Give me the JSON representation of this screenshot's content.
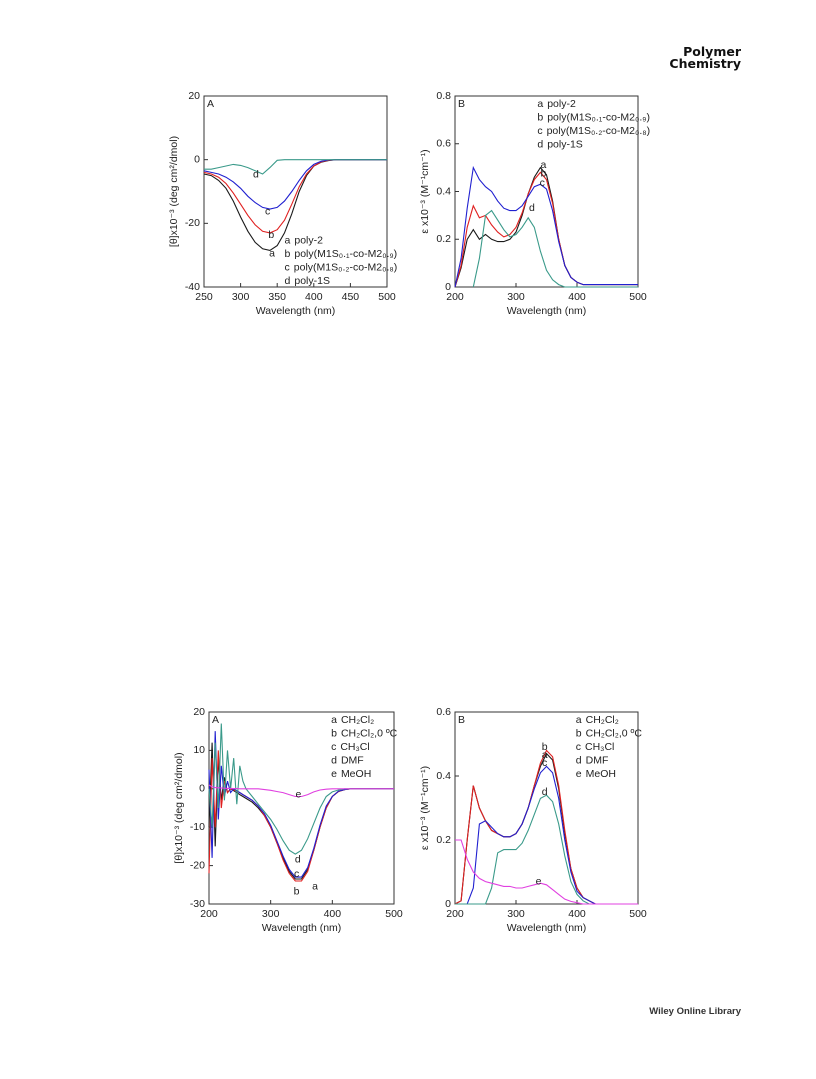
{
  "header": {
    "journal": [
      "Polymer",
      "Chemistry"
    ]
  },
  "footer": {
    "publisher": "Wiley Online Library"
  },
  "chart_data": [
    {
      "type": "line",
      "panel": "A",
      "xlabel": "Wavelength (nm)",
      "ylabel": "[θ]x10⁻³ (deg cm²/dmol)",
      "xlim": [
        250,
        500
      ],
      "ylim": [
        -40,
        20
      ],
      "xticks": [
        250,
        300,
        350,
        400,
        450,
        500
      ],
      "yticks": [
        -40,
        -20,
        0,
        20
      ],
      "legend": "lower right",
      "x": [
        250,
        260,
        270,
        280,
        290,
        300,
        310,
        320,
        330,
        340,
        350,
        360,
        370,
        380,
        390,
        400,
        410,
        420,
        430,
        440,
        450,
        460,
        470,
        480,
        490,
        500
      ],
      "series": [
        {
          "label": "a",
          "name": "poly-2",
          "color": "#1a1a1a",
          "values": [
            -4.5,
            -5,
            -6.5,
            -9,
            -13,
            -18,
            -22.5,
            -26,
            -28,
            -28.5,
            -27,
            -23,
            -17,
            -10,
            -5,
            -2,
            -0.8,
            -0.3,
            0,
            0,
            0,
            0,
            0,
            0,
            0,
            0
          ]
        },
        {
          "label": "b",
          "name": "poly(M1S₀.₁-co-M2₀.₉)",
          "color": "#e02020",
          "values": [
            -4,
            -4.5,
            -5.5,
            -7.5,
            -10.5,
            -14,
            -17.5,
            -20.5,
            -22.5,
            -23,
            -22,
            -19,
            -14,
            -8.5,
            -4.5,
            -2,
            -0.7,
            -0.2,
            0,
            0,
            0,
            0,
            0,
            0,
            0,
            0
          ]
        },
        {
          "label": "c",
          "name": "poly(M1S₀.₂-co-M2₀.₈)",
          "color": "#2020d0",
          "values": [
            -3.5,
            -4,
            -4.5,
            -5.5,
            -7,
            -9,
            -11.5,
            -13.5,
            -15,
            -15.5,
            -15,
            -13,
            -10,
            -6.5,
            -3.5,
            -1.5,
            -0.5,
            -0.1,
            0,
            0,
            0,
            0,
            0,
            0,
            0,
            0
          ]
        },
        {
          "label": "d",
          "name": "poly-1S",
          "color": "#3a9a8a",
          "values": [
            -3,
            -3,
            -2.5,
            -2,
            -1.5,
            -1.8,
            -2.5,
            -3.5,
            -4.5,
            -2.5,
            -0.2,
            0,
            0,
            0,
            0,
            0,
            0,
            0,
            0,
            0,
            0,
            0,
            0,
            0,
            0,
            0
          ]
        }
      ],
      "annotations": [
        {
          "text": "a",
          "x": 343,
          "y": -29.5
        },
        {
          "text": "b",
          "x": 342,
          "y": -23.7
        },
        {
          "text": "c",
          "x": 337,
          "y": -16.4
        },
        {
          "text": "d",
          "x": 321,
          "y": -4.8
        }
      ]
    },
    {
      "type": "line",
      "panel": "B",
      "xlabel": "Wavelength (nm)",
      "ylabel": "ε x10⁻³ (M⁻¹cm⁻¹)",
      "xlim": [
        200,
        500
      ],
      "ylim": [
        0,
        0.8
      ],
      "xticks": [
        200,
        300,
        400,
        500
      ],
      "yticks": [
        0,
        0.2,
        0.4,
        0.6,
        0.8
      ],
      "legend": "upper right",
      "x": [
        200,
        210,
        220,
        230,
        240,
        250,
        260,
        270,
        280,
        290,
        300,
        310,
        320,
        330,
        340,
        350,
        360,
        370,
        380,
        390,
        400,
        410,
        420,
        430,
        440,
        450,
        460,
        470,
        480,
        490,
        500
      ],
      "series": [
        {
          "label": "a",
          "name": "poly-2",
          "color": "#1a1a1a",
          "values": [
            0,
            0.08,
            0.2,
            0.24,
            0.2,
            0.22,
            0.2,
            0.19,
            0.19,
            0.2,
            0.23,
            0.3,
            0.39,
            0.46,
            0.5,
            0.47,
            0.36,
            0.2,
            0.09,
            0.04,
            0.02,
            0.01,
            0.01,
            0.01,
            0.01,
            0.01,
            0.01,
            0.01,
            0.01,
            0.01,
            0.01
          ]
        },
        {
          "label": "b",
          "name": "poly(M1S₀.₁-co-M2₀.₉)",
          "color": "#e02020",
          "values": [
            0,
            0.09,
            0.25,
            0.34,
            0.29,
            0.3,
            0.26,
            0.23,
            0.21,
            0.22,
            0.25,
            0.31,
            0.39,
            0.45,
            0.48,
            0.45,
            0.35,
            0.2,
            0.09,
            0.04,
            0.02,
            0.01,
            0.01,
            0.01,
            0.01,
            0.01,
            0.01,
            0.01,
            0.01,
            0.01,
            0.01
          ]
        },
        {
          "label": "c",
          "name": "poly(M1S₀.₂-co-M2₀.₈)",
          "color": "#2020d0",
          "values": [
            0,
            0.12,
            0.33,
            0.5,
            0.45,
            0.42,
            0.4,
            0.36,
            0.33,
            0.32,
            0.32,
            0.34,
            0.38,
            0.42,
            0.43,
            0.41,
            0.32,
            0.19,
            0.09,
            0.04,
            0.02,
            0.01,
            0.01,
            0.01,
            0.01,
            0.01,
            0.01,
            0.01,
            0.01,
            0.01,
            0.01
          ]
        },
        {
          "label": "d",
          "name": "poly-1S",
          "color": "#3a9a8a",
          "values": [
            null,
            null,
            null,
            0,
            0.12,
            0.3,
            0.32,
            0.28,
            0.24,
            0.21,
            0.22,
            0.25,
            0.29,
            0.25,
            0.15,
            0.07,
            0.03,
            0.01,
            0,
            0,
            0,
            0,
            0,
            0,
            0,
            0,
            0,
            0,
            0,
            0,
            0
          ]
        }
      ],
      "annotations": [
        {
          "text": "a",
          "x": 345,
          "y": 0.51
        },
        {
          "text": "b",
          "x": 345,
          "y": 0.475
        },
        {
          "text": "c",
          "x": 343,
          "y": 0.435
        },
        {
          "text": "d",
          "x": 326,
          "y": 0.33
        }
      ]
    },
    {
      "type": "line",
      "panel": "A",
      "xlabel": "Wavelength (nm)",
      "ylabel": "[θ]x10⁻³ (deg cm²/dmol)",
      "xlim": [
        200,
        500
      ],
      "ylim": [
        -30,
        20
      ],
      "xticks": [
        200,
        300,
        400,
        500
      ],
      "yticks": [
        -30,
        -20,
        -10,
        0,
        10,
        20
      ],
      "legend": "upper right",
      "x": [
        200,
        205,
        210,
        215,
        220,
        225,
        230,
        235,
        240,
        245,
        250,
        255,
        260,
        270,
        280,
        290,
        300,
        310,
        320,
        330,
        340,
        350,
        360,
        370,
        380,
        390,
        400,
        410,
        420,
        430,
        440,
        450,
        460,
        470,
        480,
        490,
        500
      ],
      "series": [
        {
          "label": "a",
          "name": "CH₂Cl₂",
          "color": "#1a1a1a",
          "values": [
            -10,
            12,
            -15,
            8,
            -3,
            3,
            -1,
            0,
            -0.5,
            -1,
            -1.5,
            -2,
            -2.5,
            -3.5,
            -5,
            -7,
            -10,
            -14,
            -18,
            -21.5,
            -23.5,
            -23.5,
            -21,
            -16,
            -10,
            -5,
            -2,
            -0.7,
            -0.2,
            0,
            0,
            0,
            0,
            0,
            0,
            0,
            0
          ]
        },
        {
          "label": "b",
          "name": "CH₂Cl₂,0 ºC",
          "color": "#e02020",
          "values": [
            -22,
            8,
            -10,
            10,
            -5,
            2,
            -1,
            0,
            -0.3,
            -0.6,
            -1,
            -1.5,
            -2,
            -3,
            -4.5,
            -7,
            -10,
            -14,
            -18.5,
            -22,
            -24,
            -24,
            -21.5,
            -16,
            -10,
            -5,
            -2,
            -0.7,
            -0.2,
            0,
            0,
            0,
            0,
            0,
            0,
            0,
            0
          ]
        },
        {
          "label": "c",
          "name": "CH₃Cl",
          "color": "#2020d0",
          "values": [
            5,
            -18,
            15,
            -8,
            6,
            -2,
            2,
            -1,
            0,
            -0.5,
            -1,
            -1.5,
            -2,
            -3,
            -4.5,
            -6.5,
            -9.5,
            -13.5,
            -17.5,
            -21,
            -23,
            -23,
            -20.5,
            -15.5,
            -9.5,
            -4.5,
            -2,
            -0.6,
            -0.2,
            0,
            0,
            0,
            0,
            0,
            0,
            0,
            0
          ]
        },
        {
          "label": "d",
          "name": "DMF",
          "color": "#3a9a8a",
          "values": [
            0,
            -10,
            12,
            -5,
            17,
            -3,
            10,
            0,
            8,
            -4,
            6,
            2,
            0,
            -2,
            -4,
            -6,
            -8,
            -10.5,
            -13.5,
            -16,
            -17,
            -16,
            -13,
            -9,
            -5,
            -2,
            -0.8,
            -0.3,
            0,
            0,
            0,
            0,
            0,
            0,
            0,
            0,
            0
          ]
        },
        {
          "label": "e",
          "name": "MeOH",
          "color": "#e040e0",
          "values": [
            1,
            0.5,
            0.3,
            0.25,
            0.2,
            0.15,
            0.1,
            0.1,
            0.05,
            0.05,
            0,
            0,
            0,
            0,
            0,
            -0.2,
            -0.4,
            -0.7,
            -1,
            -1.5,
            -2,
            -2,
            -1.5,
            -0.8,
            -0.3,
            -0.1,
            0,
            0,
            0,
            0,
            0,
            0,
            0,
            0,
            0,
            0,
            0
          ]
        }
      ],
      "annotations": [
        {
          "text": "a",
          "x": 372,
          "y": -25.5
        },
        {
          "text": "b",
          "x": 342,
          "y": -26.8
        },
        {
          "text": "c",
          "x": 342,
          "y": -22.3
        },
        {
          "text": "d",
          "x": 344,
          "y": -18.5
        },
        {
          "text": "e",
          "x": 345,
          "y": -1.5
        }
      ]
    },
    {
      "type": "line",
      "panel": "B",
      "xlabel": "Wavelength (nm)",
      "ylabel": "ε x10⁻³ (M⁻¹cm⁻¹)",
      "xlim": [
        200,
        500
      ],
      "ylim": [
        0,
        0.6
      ],
      "xticks": [
        200,
        300,
        400,
        500
      ],
      "yticks": [
        0,
        0.2,
        0.4,
        0.6
      ],
      "legend": "upper right",
      "x": [
        200,
        210,
        220,
        230,
        240,
        250,
        260,
        270,
        280,
        290,
        300,
        310,
        320,
        330,
        340,
        350,
        360,
        370,
        380,
        390,
        400,
        410,
        420,
        430,
        440,
        450,
        460,
        470,
        480,
        490,
        500
      ],
      "series": [
        {
          "label": "a",
          "name": "CH₂Cl₂",
          "color": "#1a1a1a",
          "values": [
            0,
            0.01,
            0.2,
            0.37,
            0.3,
            0.26,
            0.23,
            0.22,
            0.21,
            0.21,
            0.22,
            0.25,
            0.3,
            0.37,
            0.43,
            0.47,
            0.45,
            0.36,
            0.22,
            0.11,
            0.05,
            0.02,
            0.01,
            0,
            0,
            0,
            0,
            0,
            0,
            0,
            0
          ]
        },
        {
          "label": "b",
          "name": "CH₂Cl₂,0 ºC",
          "color": "#e02020",
          "values": [
            0,
            0.01,
            0.2,
            0.37,
            0.3,
            0.26,
            0.23,
            0.22,
            0.21,
            0.21,
            0.22,
            0.25,
            0.3,
            0.37,
            0.44,
            0.48,
            0.46,
            0.37,
            0.23,
            0.11,
            0.05,
            0.02,
            0.01,
            0,
            0,
            0,
            0,
            0,
            0,
            0,
            0
          ]
        },
        {
          "label": "c",
          "name": "CH₃Cl",
          "color": "#2020d0",
          "values": [
            0,
            0,
            0,
            0.05,
            0.25,
            0.26,
            0.24,
            0.22,
            0.21,
            0.21,
            0.22,
            0.25,
            0.3,
            0.36,
            0.41,
            0.43,
            0.41,
            0.33,
            0.2,
            0.1,
            0.04,
            0.02,
            0.01,
            0,
            0,
            0,
            0,
            0,
            0,
            0,
            0
          ]
        },
        {
          "label": "d",
          "name": "DMF",
          "color": "#3a9a8a",
          "values": [
            0,
            0,
            0,
            0,
            0,
            0,
            0.05,
            0.16,
            0.17,
            0.17,
            0.17,
            0.19,
            0.23,
            0.28,
            0.33,
            0.34,
            0.32,
            0.25,
            0.15,
            0.07,
            0.03,
            0.01,
            0,
            0,
            0,
            0,
            0,
            0,
            0,
            0,
            0
          ]
        },
        {
          "label": "e",
          "name": "MeOH",
          "color": "#e040e0",
          "values": [
            0.2,
            0.2,
            0.14,
            0.1,
            0.08,
            0.07,
            0.065,
            0.06,
            0.055,
            0.055,
            0.05,
            0.05,
            0.055,
            0.06,
            0.065,
            0.06,
            0.045,
            0.03,
            0.015,
            0.008,
            0.004,
            0,
            0,
            0,
            0,
            0,
            0,
            0,
            0,
            0,
            0
          ]
        }
      ],
      "annotations": [
        {
          "text": "b",
          "x": 347,
          "y": 0.49
        },
        {
          "text": "a",
          "x": 347,
          "y": 0.465
        },
        {
          "text": "c",
          "x": 347,
          "y": 0.44
        },
        {
          "text": "d",
          "x": 347,
          "y": 0.35
        },
        {
          "text": "e",
          "x": 337,
          "y": 0.07
        }
      ]
    }
  ]
}
